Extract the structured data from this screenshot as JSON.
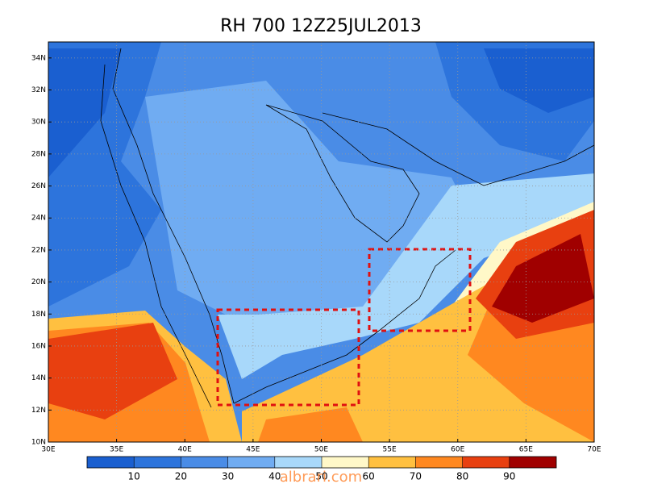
{
  "title": "RH 700  12Z25JUL2013",
  "map": {
    "xlim": [
      30,
      70
    ],
    "ylim": [
      10,
      35
    ],
    "xticks": [
      {
        "value": 30,
        "label": "30E"
      },
      {
        "value": 35,
        "label": "35E"
      },
      {
        "value": 40,
        "label": "40E"
      },
      {
        "value": 45,
        "label": "45E"
      },
      {
        "value": 50,
        "label": "50E"
      },
      {
        "value": 55,
        "label": "55E"
      },
      {
        "value": 60,
        "label": "60E"
      },
      {
        "value": 65,
        "label": "65E"
      },
      {
        "value": 70,
        "label": "70E"
      }
    ],
    "yticks": [
      {
        "value": 10,
        "label": "10N"
      },
      {
        "value": 12,
        "label": "12N"
      },
      {
        "value": 14,
        "label": "14N"
      },
      {
        "value": 16,
        "label": "16N"
      },
      {
        "value": 18,
        "label": "18N"
      },
      {
        "value": 20,
        "label": "20N"
      },
      {
        "value": 22,
        "label": "22N"
      },
      {
        "value": 24,
        "label": "24N"
      },
      {
        "value": 26,
        "label": "26N"
      },
      {
        "value": 28,
        "label": "28N"
      },
      {
        "value": 30,
        "label": "30N"
      },
      {
        "value": 32,
        "label": "32N"
      },
      {
        "value": 34,
        "label": "34N"
      }
    ],
    "grid": true
  },
  "colorbar": {
    "levels": [
      10,
      20,
      30,
      40,
      50,
      60,
      70,
      80,
      90
    ],
    "colors": [
      "#1a5fd0",
      "#2d74dc",
      "#4a8ce6",
      "#70acf2",
      "#a8d8fa",
      "#fff8c8",
      "#ffc040",
      "#ff8820",
      "#e84010",
      "#a00000"
    ]
  },
  "watermark": "albrari.com"
}
